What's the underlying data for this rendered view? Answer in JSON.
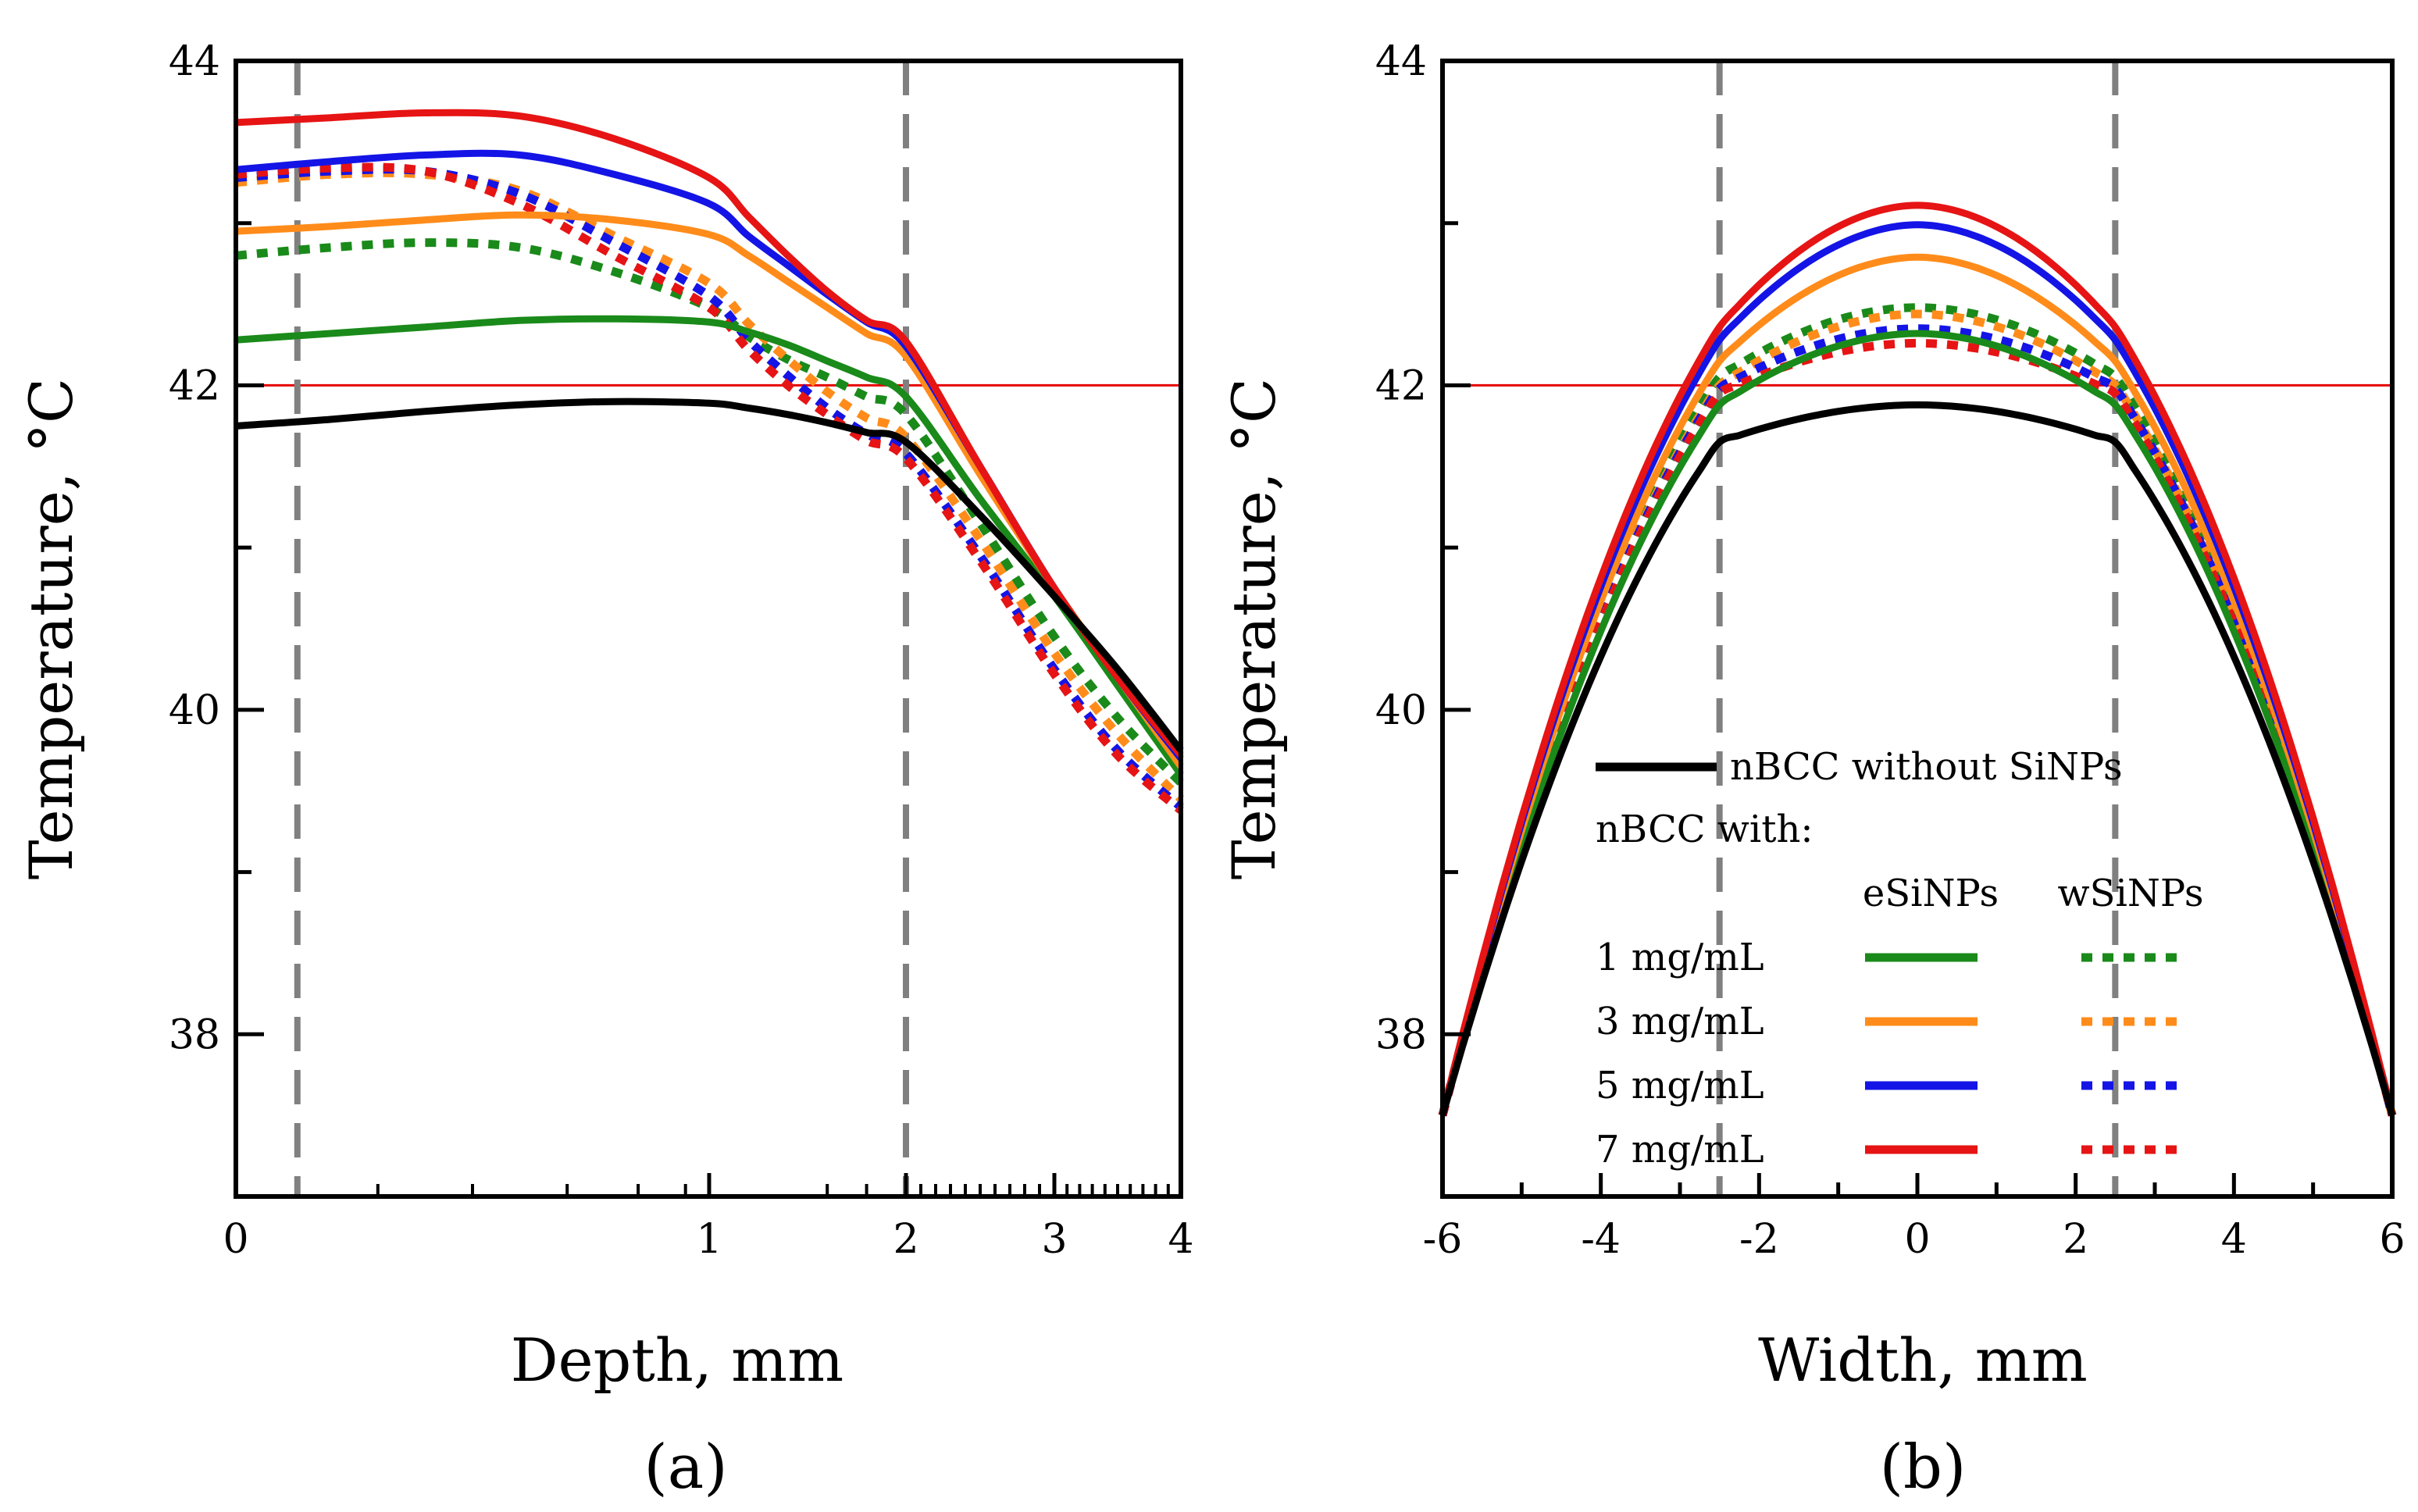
{
  "chart_data": [
    {
      "type": "line",
      "panel_label": "(a)",
      "xlabel": "Depth, mm",
      "ylabel": "Temperature, °C",
      "xscale": "piecewise (linear 0-2 mm, compressed/log-like 2-4 mm)",
      "xlim": [
        0,
        4
      ],
      "ylim": [
        37,
        44
      ],
      "x_ticks": [
        "0",
        "1",
        "2",
        "3",
        "4"
      ],
      "y_ticks": [
        "38",
        "40",
        "42",
        "44"
      ],
      "reference_line": {
        "y": 42,
        "color": "#e60000"
      },
      "boundary_lines": {
        "x": [
          0.13,
          2.0
        ],
        "color": "#808080",
        "style": "dashed"
      },
      "series": [
        {
          "name": "nBCC without SiNPs",
          "color": "#000000",
          "style": "solid",
          "x": [
            0,
            0.2,
            0.4,
            0.6,
            0.8,
            1.0,
            1.2,
            1.4,
            1.6,
            1.8,
            2.0,
            2.5,
            3.0,
            3.5,
            4.0
          ],
          "y": [
            41.75,
            41.79,
            41.84,
            41.88,
            41.9,
            41.89,
            41.86,
            41.82,
            41.77,
            41.71,
            41.65,
            41.2,
            40.7,
            40.25,
            39.75
          ]
        },
        {
          "name": "1 mg/mL eSiNPs",
          "color": "#1a8a1a",
          "style": "solid",
          "x": [
            0,
            0.2,
            0.4,
            0.6,
            0.8,
            1.0,
            1.2,
            1.4,
            1.6,
            1.8,
            2.0,
            2.5,
            3.0,
            3.5,
            4.0
          ],
          "y": [
            42.28,
            42.32,
            42.36,
            42.4,
            42.41,
            42.39,
            42.33,
            42.25,
            42.15,
            42.05,
            41.93,
            41.3,
            40.7,
            40.15,
            39.6
          ]
        },
        {
          "name": "3 mg/mL eSiNPs",
          "color": "#ff8c1a",
          "style": "solid",
          "x": [
            0,
            0.2,
            0.4,
            0.6,
            0.8,
            1.0,
            1.2,
            1.4,
            1.6,
            1.8,
            2.0,
            2.5,
            3.0,
            3.5,
            4.0
          ],
          "y": [
            42.95,
            42.98,
            43.02,
            43.05,
            43.02,
            42.93,
            42.8,
            42.64,
            42.48,
            42.32,
            42.18,
            41.45,
            40.75,
            40.2,
            39.65
          ]
        },
        {
          "name": "5 mg/mL eSiNPs",
          "color": "#1414e6",
          "style": "solid",
          "x": [
            0,
            0.2,
            0.4,
            0.6,
            0.8,
            1.0,
            1.2,
            1.4,
            1.6,
            1.8,
            2.0,
            2.5,
            3.0,
            3.5,
            4.0
          ],
          "y": [
            43.33,
            43.38,
            43.42,
            43.42,
            43.3,
            43.12,
            42.92,
            42.74,
            42.56,
            42.39,
            42.24,
            41.5,
            40.75,
            40.2,
            39.7
          ]
        },
        {
          "name": "7 mg/mL eSiNPs",
          "color": "#e61414",
          "style": "solid",
          "x": [
            0,
            0.2,
            0.4,
            0.6,
            0.8,
            1.0,
            1.2,
            1.4,
            1.6,
            1.8,
            2.0,
            2.5,
            3.0,
            3.5,
            4.0
          ],
          "y": [
            43.62,
            43.65,
            43.68,
            43.66,
            43.52,
            43.28,
            43.04,
            42.8,
            42.58,
            42.4,
            42.27,
            41.5,
            40.75,
            40.2,
            39.72
          ]
        },
        {
          "name": "1 mg/mL wSiNPs",
          "color": "#1a8a1a",
          "style": "dotted",
          "x": [
            0,
            0.2,
            0.4,
            0.6,
            0.8,
            1.0,
            1.2,
            1.4,
            1.6,
            1.8,
            2.0,
            2.5,
            3.0,
            3.5,
            4.0
          ],
          "y": [
            42.8,
            42.85,
            42.88,
            42.85,
            42.7,
            42.48,
            42.3,
            42.16,
            42.05,
            41.93,
            41.82,
            41.15,
            40.45,
            39.95,
            39.55
          ]
        },
        {
          "name": "3 mg/mL wSiNPs",
          "color": "#ff8c1a",
          "style": "dotted",
          "x": [
            0,
            0.2,
            0.4,
            0.6,
            0.8,
            1.0,
            1.2,
            1.4,
            1.6,
            1.8,
            2.0,
            2.5,
            3.0,
            3.5,
            4.0
          ],
          "y": [
            43.25,
            43.3,
            43.3,
            43.2,
            42.92,
            42.63,
            42.38,
            42.16,
            41.96,
            41.8,
            41.68,
            41.05,
            40.35,
            39.85,
            39.45
          ]
        },
        {
          "name": "5 mg/mL wSiNPs",
          "color": "#1414e6",
          "style": "dotted",
          "x": [
            0,
            0.2,
            0.4,
            0.6,
            0.8,
            1.0,
            1.2,
            1.4,
            1.6,
            1.8,
            2.0,
            2.5,
            3.0,
            3.5,
            4.0
          ],
          "y": [
            43.28,
            43.32,
            43.32,
            43.18,
            42.88,
            42.55,
            42.28,
            42.06,
            41.86,
            41.7,
            41.58,
            40.95,
            40.25,
            39.75,
            39.4
          ]
        },
        {
          "name": "7 mg/mL wSiNPs",
          "color": "#e61414",
          "style": "dotted",
          "x": [
            0,
            0.2,
            0.4,
            0.6,
            0.8,
            1.0,
            1.2,
            1.4,
            1.6,
            1.8,
            2.0,
            2.5,
            3.0,
            3.5,
            4.0
          ],
          "y": [
            43.3,
            43.34,
            43.32,
            43.12,
            42.8,
            42.48,
            42.22,
            42.0,
            41.82,
            41.66,
            41.55,
            40.92,
            40.22,
            39.72,
            39.38
          ]
        }
      ]
    },
    {
      "type": "line",
      "panel_label": "(b)",
      "xlabel": "Width, mm",
      "ylabel": "Temperature, °C",
      "xlim": [
        -6,
        6
      ],
      "ylim": [
        37,
        44
      ],
      "x_ticks": [
        "-6",
        "-4",
        "-2",
        "0",
        "2",
        "4",
        "6"
      ],
      "y_ticks": [
        "38",
        "40",
        "42",
        "44"
      ],
      "reference_line": {
        "y": 42,
        "color": "#e60000"
      },
      "boundary_lines": {
        "x": [
          -2.5,
          2.5
        ],
        "color": "#808080",
        "style": "dashed"
      },
      "peaks": [
        {
          "name": "nBCC without SiNPs",
          "boundary": 41.65,
          "peak": 41.88
        },
        {
          "name": "1 mg/mL eSiNPs",
          "boundary": 41.88,
          "peak": 42.32
        },
        {
          "name": "3 mg/mL eSiNPs",
          "boundary": 42.15,
          "peak": 42.79
        },
        {
          "name": "5 mg/mL eSiNPs",
          "boundary": 42.28,
          "peak": 42.99
        },
        {
          "name": "7 mg/mL eSiNPs",
          "boundary": 42.36,
          "peak": 43.11
        },
        {
          "name": "1 mg/mL wSiNPs",
          "boundary": 42.05,
          "peak": 42.48
        },
        {
          "name": "3 mg/mL wSiNPs",
          "boundary": 42.0,
          "peak": 42.44
        },
        {
          "name": "5 mg/mL wSiNPs",
          "boundary": 41.98,
          "peak": 42.35
        },
        {
          "name": "7 mg/mL wSiNPs",
          "boundary": 41.95,
          "peak": 42.26
        }
      ],
      "edge_value": 37.5,
      "legend": {
        "placement": "lower-center",
        "baseline_label": "nBCC without SiNPs",
        "with_label": "nBCC with:",
        "col_headers": [
          "eSiNPs",
          "wSiNPs"
        ],
        "rows": [
          {
            "label": "1 mg/mL",
            "color": "#1a8a1a"
          },
          {
            "label": "3 mg/mL",
            "color": "#ff8c1a"
          },
          {
            "label": "5 mg/mL",
            "color": "#1414e6"
          },
          {
            "label": "7 mg/mL",
            "color": "#e61414"
          }
        ]
      }
    }
  ]
}
